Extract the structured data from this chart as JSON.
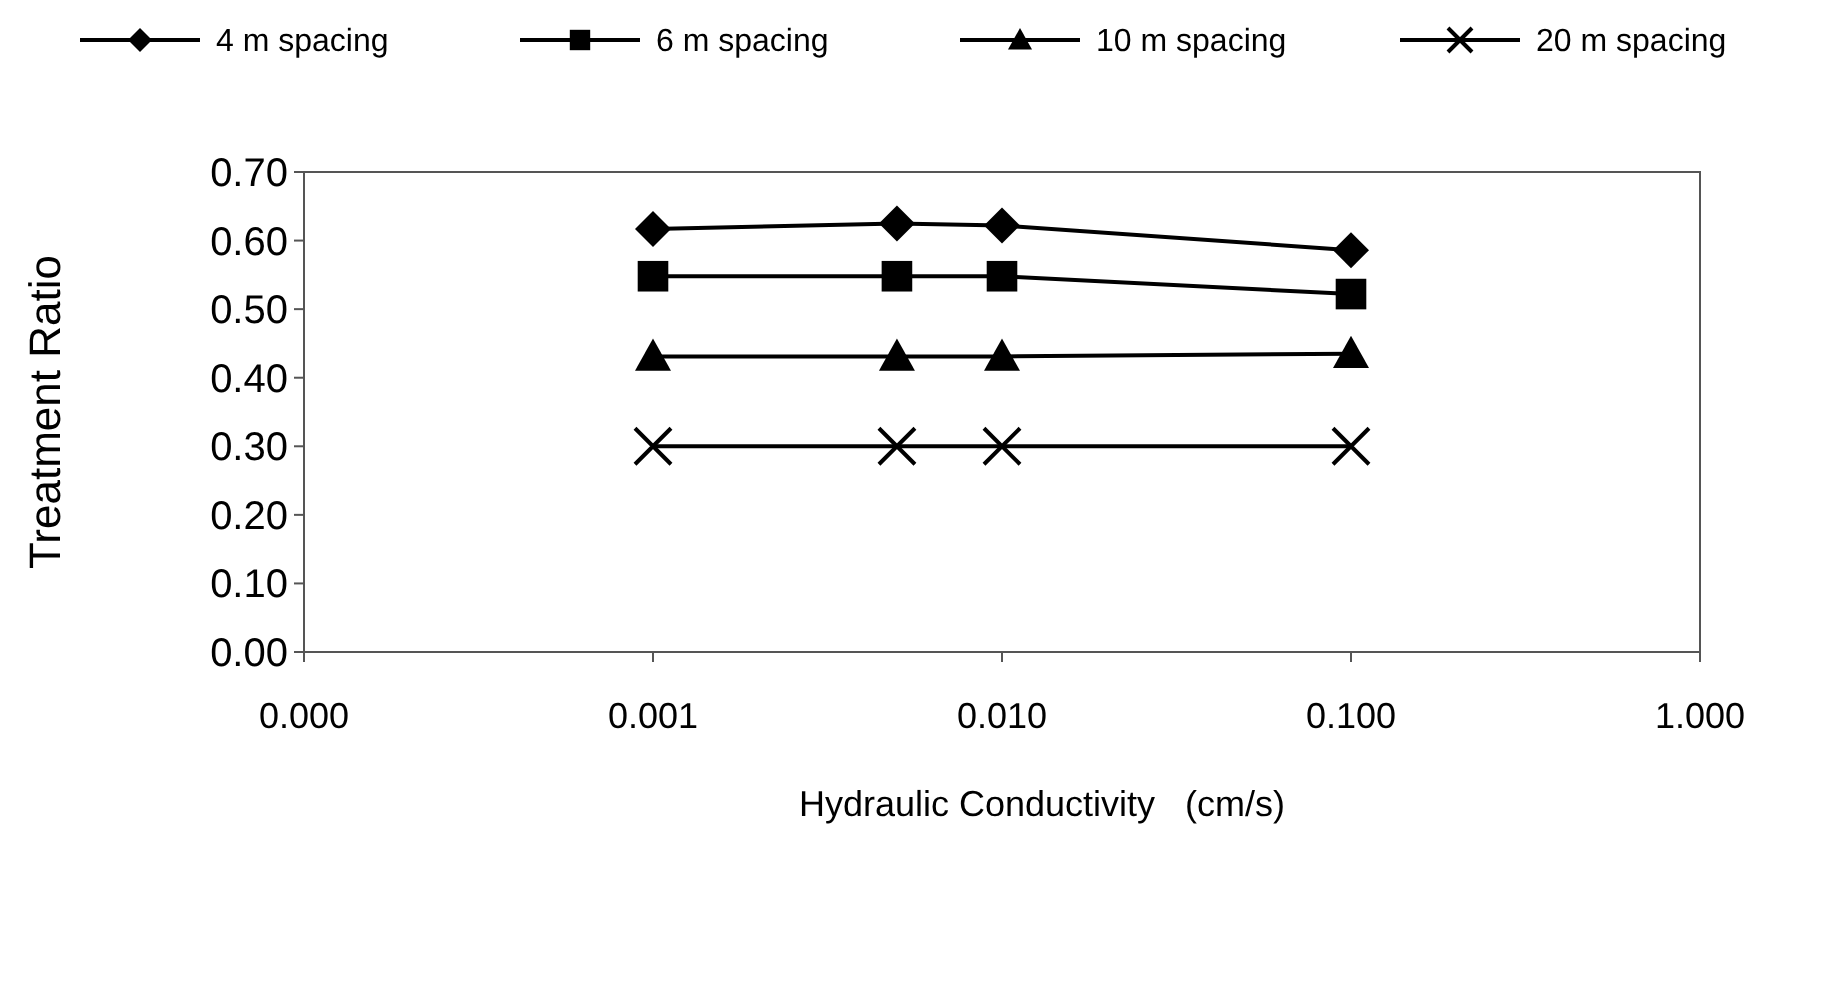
{
  "chart_data": {
    "type": "line",
    "xlabel": "Hydraulic Conductivity   (cm/s)",
    "ylabel": "Treatment Ratio",
    "log": "x",
    "x": [
      0.001,
      0.005,
      0.01,
      0.1
    ],
    "xlim": [
      0.0001,
      1
    ],
    "xticks": [
      {
        "value": 0.0001,
        "label": "0.000"
      },
      {
        "value": 0.001,
        "label": "0.001"
      },
      {
        "value": 0.01,
        "label": "0.010"
      },
      {
        "value": 0.1,
        "label": "0.100"
      },
      {
        "value": 1,
        "label": "1.000"
      }
    ],
    "ylim": [
      0,
      0.7
    ],
    "yticks": [
      {
        "value": 0,
        "label": "0.00"
      },
      {
        "value": 0.1,
        "label": "0.10"
      },
      {
        "value": 0.2,
        "label": "0.20"
      },
      {
        "value": 0.3,
        "label": "0.30"
      },
      {
        "value": 0.4,
        "label": "0.40"
      },
      {
        "value": 0.5,
        "label": "0.50"
      },
      {
        "value": 0.6,
        "label": "0.60"
      },
      {
        "value": 0.7,
        "label": "0.70"
      }
    ],
    "grid": false,
    "legend": "top",
    "line_style": "solid",
    "series": [
      {
        "name": "4 m spacing",
        "color": "#000000",
        "marker": "diamond",
        "values": [
          0.617,
          0.625,
          0.622,
          0.586
        ]
      },
      {
        "name": "6 m spacing",
        "color": "#000000",
        "marker": "square",
        "values": [
          0.548,
          0.548,
          0.548,
          0.522
        ]
      },
      {
        "name": "10 m spacing",
        "color": "#000000",
        "marker": "triangle",
        "values": [
          0.431,
          0.431,
          0.431,
          0.435
        ]
      },
      {
        "name": "20 m spacing",
        "color": "#000000",
        "marker": "cross",
        "values": [
          0.3,
          0.3,
          0.3,
          0.3
        ]
      }
    ]
  }
}
